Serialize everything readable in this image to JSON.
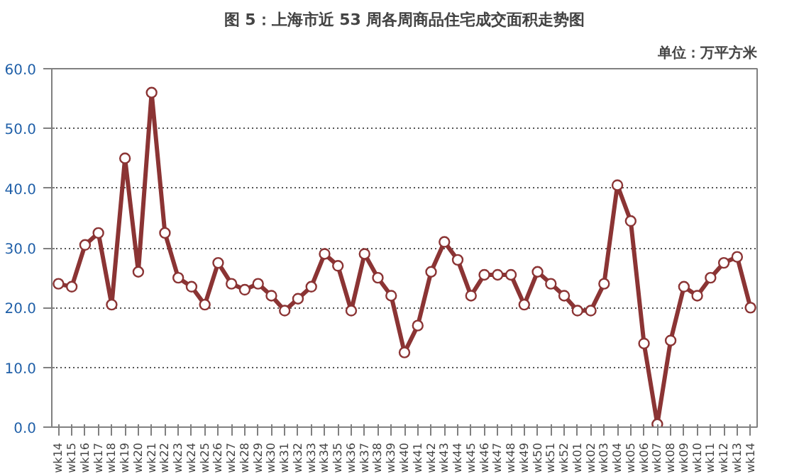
{
  "chart_data": {
    "type": "line",
    "title": "图 5：上海市近 53 周各周商品住宅成交面积走势图",
    "subtitle": "单位：万平方米",
    "categories": [
      "wk14",
      "wk15",
      "wk16",
      "wk17",
      "wk18",
      "wk19",
      "wk20",
      "wk21",
      "wk22",
      "wk23",
      "wk24",
      "wk25",
      "wk26",
      "wk27",
      "wk28",
      "wk29",
      "wk30",
      "wk31",
      "wk32",
      "wk33",
      "wk34",
      "wk35",
      "wk36",
      "wk37",
      "wk38",
      "wk39",
      "wk40",
      "wk41",
      "wk42",
      "wk43",
      "wk44",
      "wk45",
      "wk46",
      "wk47",
      "wk48",
      "wk49",
      "wk50",
      "wk51",
      "wk52",
      "wk01",
      "wk02",
      "wk03",
      "wk04",
      "wk05",
      "wk06",
      "wk07",
      "wk08",
      "wk09",
      "wk10",
      "wk11",
      "wk12",
      "wk13",
      "wk14"
    ],
    "series": [
      {
        "color": "#8b3434",
        "values": [
          24,
          23.5,
          30.5,
          32.5,
          20.5,
          45,
          26,
          56,
          32.5,
          25,
          23.5,
          20.5,
          27.5,
          24,
          23,
          24,
          22,
          19.5,
          21.5,
          23.5,
          29,
          27,
          19.5,
          29,
          25,
          22,
          12.5,
          17,
          26,
          31,
          28,
          22,
          25.5,
          25.5,
          25.5,
          20.5,
          26,
          24,
          22,
          19.5,
          19.5,
          24,
          40.5,
          34.5,
          14,
          0.5,
          14.5,
          23.5,
          22,
          25,
          27.5,
          28.5,
          20
        ]
      }
    ],
    "ylim": [
      0,
      60
    ],
    "yticks": [
      {
        "value": 0,
        "label": "0.0"
      },
      {
        "value": 10,
        "label": "10.0"
      },
      {
        "value": 20,
        "label": "20.0"
      },
      {
        "value": 30,
        "label": "30.0"
      },
      {
        "value": 40,
        "label": "40.0"
      },
      {
        "value": 50,
        "label": "50.0"
      },
      {
        "value": 60,
        "label": "60.0"
      }
    ],
    "grid": "y",
    "marker": "circle",
    "line_style": "solid"
  }
}
